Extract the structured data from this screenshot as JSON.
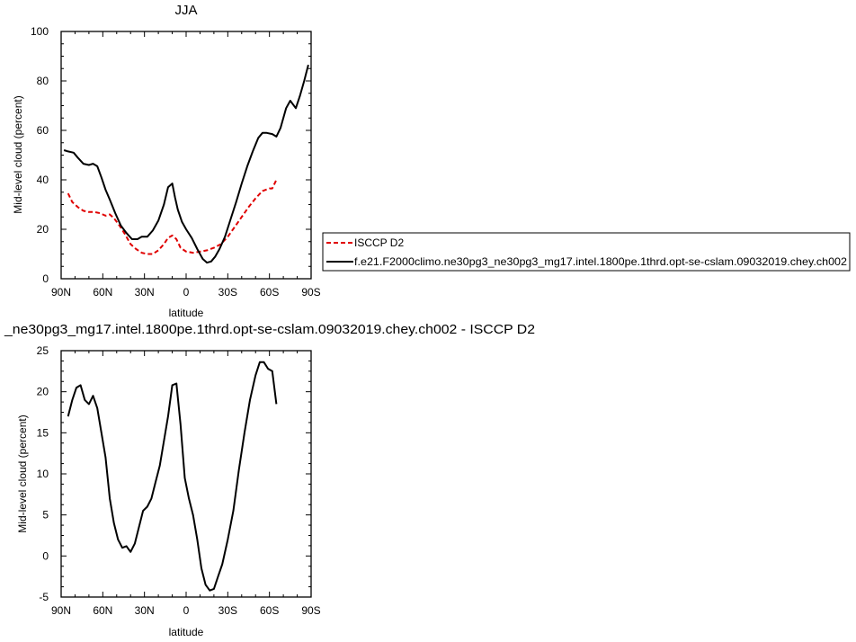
{
  "chart_data": [
    {
      "type": "line",
      "title": "JJA",
      "xlabel": "latitude",
      "ylabel": "Mid-level cloud (percent)",
      "xlim": [
        90,
        -90
      ],
      "ylim": [
        0,
        100
      ],
      "xticks": [
        90,
        60,
        30,
        0,
        -30,
        -60,
        -90
      ],
      "xtick_labels": [
        "90N",
        "60N",
        "30N",
        "0",
        "30S",
        "60S",
        "90S"
      ],
      "yticks": [
        0,
        20,
        40,
        60,
        80,
        100
      ],
      "ytick_labels": [
        "0",
        "20",
        "40",
        "60",
        "80",
        "100"
      ],
      "legend_position": "right",
      "series": [
        {
          "name": "ISCCP D2",
          "color": "#e00000",
          "dash": "dashed",
          "x": [
            85,
            82,
            78,
            74,
            70,
            66,
            62,
            58,
            55,
            52,
            48,
            44,
            40,
            36,
            32,
            28,
            24,
            20,
            16,
            13,
            10,
            7,
            4,
            0,
            -5,
            -10,
            -15,
            -20,
            -25,
            -30,
            -35,
            -40,
            -45,
            -50,
            -55,
            -60,
            -62,
            -65
          ],
          "y": [
            34.5,
            31,
            29,
            27.5,
            27,
            27,
            26.5,
            25.5,
            26,
            24.5,
            21.5,
            18,
            14,
            12,
            10.5,
            10,
            10,
            11.5,
            14,
            16.5,
            17.5,
            16,
            12.5,
            11,
            10.5,
            11,
            11.5,
            12.5,
            14,
            17,
            21,
            25,
            29,
            32.5,
            35.5,
            36.5,
            36.5,
            40
          ]
        },
        {
          "name": "f.e21.F2000climo.ne30pg3_ne30pg3_mg17.intel.1800pe.1thrd.opt-se-cslam.09032019.chey.ch002",
          "color": "#000000",
          "dash": "solid",
          "x": [
            88,
            85,
            81,
            78,
            74,
            70,
            67,
            64,
            61,
            58,
            55,
            51,
            47,
            43,
            39,
            35,
            32,
            28,
            24,
            20,
            16,
            13,
            10,
            8,
            6,
            3,
            0,
            -4,
            -8,
            -12,
            -15,
            -18,
            -21,
            -24,
            -28,
            -32,
            -36,
            -40,
            -44,
            -48,
            -52,
            -55,
            -58,
            -62,
            -65,
            -68,
            -72,
            -75,
            -79,
            -82,
            -85,
            -88
          ],
          "y": [
            52,
            51.5,
            51,
            49,
            46.5,
            46,
            46.5,
            45.5,
            41,
            36,
            32,
            26.5,
            21.5,
            18.5,
            16,
            16,
            17,
            17,
            19.5,
            23.5,
            30,
            37,
            38.5,
            33,
            28,
            23,
            20,
            16.5,
            12,
            8,
            6.5,
            7,
            9,
            12,
            17,
            24,
            31,
            38.5,
            45.5,
            51.5,
            57,
            59,
            59,
            58.5,
            57.5,
            61,
            69,
            72,
            69,
            74,
            80,
            86.5
          ]
        }
      ]
    },
    {
      "type": "line",
      "title": "_ne30pg3_mg17.intel.1800pe.1thrd.opt-se-cslam.09032019.chey.ch002 - ISCCP D2",
      "xlabel": "latitude",
      "ylabel": "Mid-level cloud (percent)",
      "xlim": [
        90,
        -90
      ],
      "ylim": [
        -5,
        25
      ],
      "xticks": [
        90,
        60,
        30,
        0,
        -30,
        -60,
        -90
      ],
      "xtick_labels": [
        "90N",
        "60N",
        "30N",
        "0",
        "30S",
        "60S",
        "90S"
      ],
      "yticks": [
        -5,
        0,
        5,
        10,
        15,
        20,
        25
      ],
      "ytick_labels": [
        "-5",
        "0",
        "5",
        "10",
        "15",
        "20",
        "25"
      ],
      "series": [
        {
          "color": "#000000",
          "x": [
            85,
            82,
            79,
            76,
            73,
            70,
            67,
            64,
            61,
            58,
            55,
            52,
            49,
            46,
            43,
            40,
            37,
            34,
            31,
            28,
            25,
            22,
            19,
            16,
            13,
            10,
            7,
            4,
            1,
            -2,
            -5,
            -8,
            -11,
            -14,
            -17,
            -20,
            -23,
            -26,
            -30,
            -34,
            -38,
            -42,
            -46,
            -50,
            -53,
            -56,
            -59,
            -62,
            -65
          ],
          "y": [
            17,
            19,
            20.5,
            20.8,
            19,
            18.5,
            19.5,
            18,
            15,
            12,
            7,
            4,
            2,
            1,
            1.2,
            0.5,
            1.5,
            3.5,
            5.5,
            6,
            7,
            9,
            11,
            14,
            17,
            20.8,
            21,
            16,
            9.5,
            7,
            5,
            2,
            -1.5,
            -3.5,
            -4.2,
            -4,
            -2.5,
            -1,
            2,
            5.5,
            10.5,
            15,
            19,
            22,
            23.6,
            23.6,
            22.8,
            22.5,
            18.5
          ]
        }
      ]
    }
  ]
}
